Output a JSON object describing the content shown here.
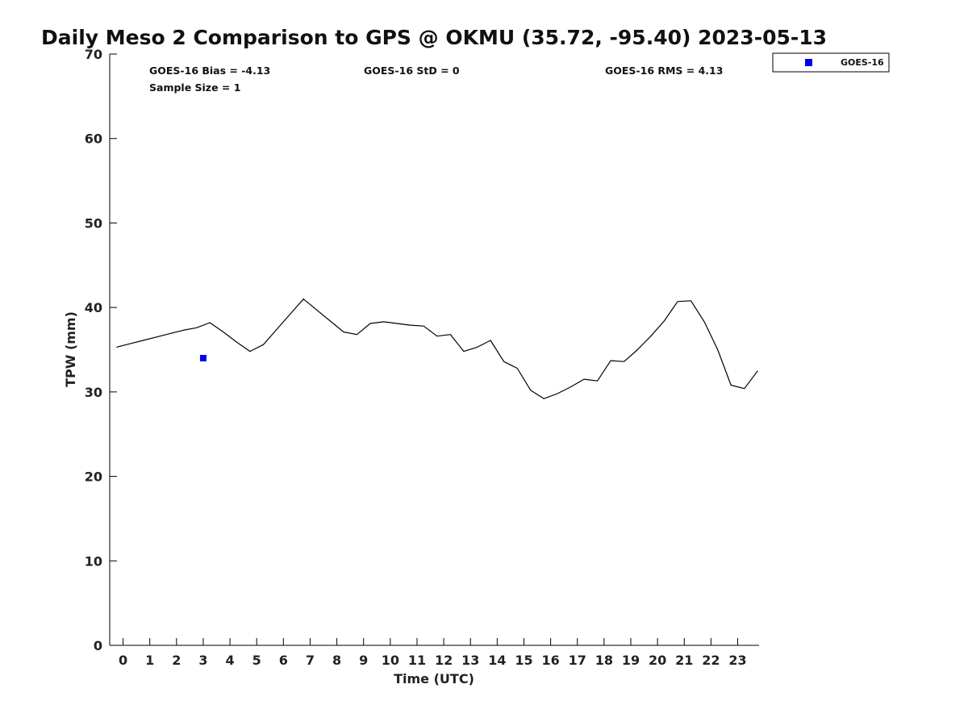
{
  "chart_data": {
    "type": "line",
    "title": "Daily Meso 2 Comparison to GPS @ OKMU (35.72, -95.40) 2023-05-13",
    "xlabel": "Time (UTC)",
    "ylabel": "TPW (mm)",
    "xlim": [
      -0.5,
      23.8
    ],
    "ylim": [
      0,
      70
    ],
    "x_ticks": [
      0,
      1,
      2,
      3,
      4,
      5,
      6,
      7,
      8,
      9,
      10,
      11,
      12,
      13,
      14,
      15,
      16,
      17,
      18,
      19,
      20,
      21,
      22,
      23
    ],
    "y_ticks": [
      0,
      10,
      20,
      30,
      40,
      50,
      60,
      70
    ],
    "grid": false,
    "legend_placement": "top-right-outside",
    "annotations": {
      "bias": "GOES-16 Bias = -4.13",
      "std": "GOES-16 StD = 0",
      "rms": "GOES-16 RMS = 4.13",
      "sample_size": "Sample Size = 1"
    },
    "series": [
      {
        "kind": "line",
        "color": "#000000",
        "x": [
          -0.25,
          0.25,
          0.75,
          1.25,
          1.75,
          2.25,
          2.75,
          3.25,
          3.75,
          4.25,
          4.75,
          5.25,
          5.75,
          6.25,
          6.75,
          7.25,
          7.75,
          8.25,
          8.75,
          9.25,
          9.75,
          10.25,
          10.75,
          11.25,
          11.75,
          12.25,
          12.75,
          13.25,
          13.75,
          14.25,
          14.75,
          15.25,
          15.75,
          16.25,
          16.75,
          17.25,
          17.75,
          18.25,
          18.75,
          19.25,
          19.75,
          20.25,
          20.75,
          21.25,
          21.75,
          22.25,
          22.75,
          23.25,
          23.75
        ],
        "y": [
          35.3,
          35.7,
          36.1,
          36.5,
          36.9,
          37.3,
          37.6,
          38.2,
          37.1,
          35.9,
          34.8,
          35.6,
          37.4,
          39.2,
          41.0,
          39.7,
          38.4,
          37.1,
          36.8,
          38.1,
          38.3,
          38.1,
          37.9,
          37.8,
          36.6,
          36.8,
          34.8,
          35.3,
          36.1,
          33.6,
          32.8,
          30.2,
          29.2,
          29.8,
          30.6,
          31.5,
          31.3,
          33.7,
          33.6,
          35.0,
          36.6,
          38.4,
          40.7,
          40.8,
          38.3,
          35.0,
          30.8,
          30.4,
          32.5
        ]
      },
      {
        "kind": "marker",
        "name": "GOES-16",
        "color": "#0000ee",
        "x": [
          3.0
        ],
        "y": [
          34.0
        ]
      }
    ]
  }
}
